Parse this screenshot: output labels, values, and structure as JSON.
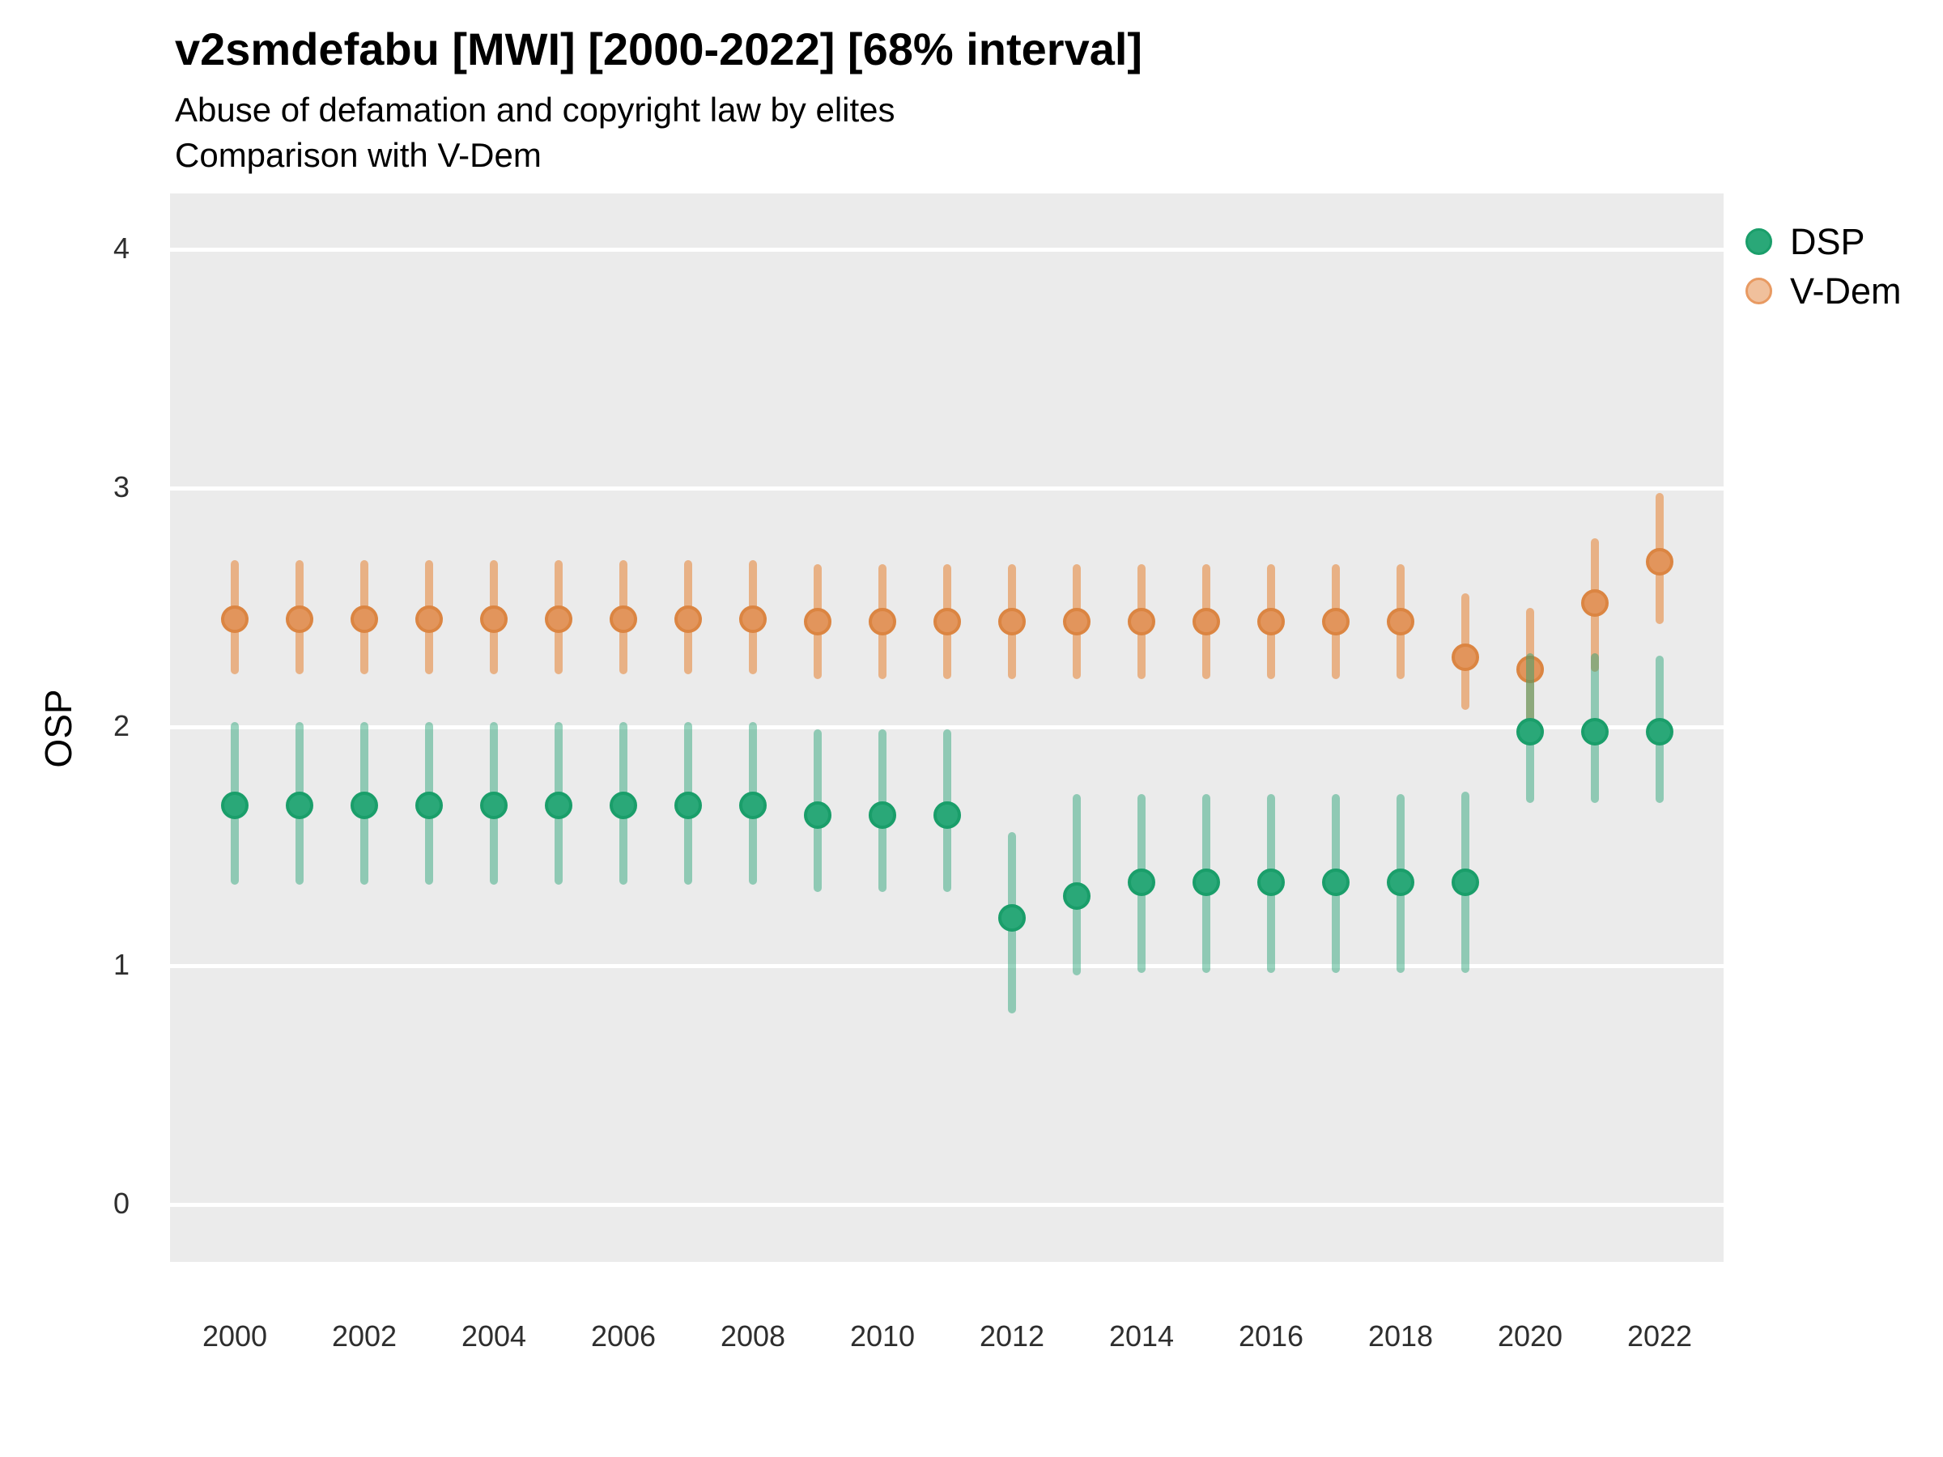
{
  "header": {
    "title": "v2smdefabu [MWI] [2000-2022] [68% interval]",
    "subtitle1": "Abuse of defamation and copyright law by elites",
    "subtitle2": "Comparison with V-Dem"
  },
  "y_axis": {
    "label": "OSP",
    "ticks": [
      0,
      1,
      2,
      3,
      4
    ]
  },
  "x_axis": {
    "tick_years": [
      2000,
      2002,
      2004,
      2006,
      2008,
      2010,
      2012,
      2014,
      2016,
      2018,
      2020,
      2022
    ]
  },
  "legend": {
    "items": [
      {
        "label": "DSP",
        "fill": "#2AA878",
        "stroke": "#1A9E6A"
      },
      {
        "label": "V-Dem",
        "fill": "#F0C09C",
        "stroke": "#E89A62"
      }
    ]
  },
  "colors": {
    "panel_bg": "#EBEBEB",
    "gridline": "#FFFFFF",
    "dsp_green": "#1B9E77",
    "vdem_orange": "#D95F02"
  },
  "chart_data": {
    "type": "pointrange",
    "title": "v2smdefabu [MWI] [2000-2022] [68% interval]",
    "xlabel": "",
    "ylabel": "OSP",
    "ylim": [
      0,
      4
    ],
    "grid": "major-horizontal-white-on-gray",
    "legend_position": "right-top",
    "interval": "68%",
    "x": [
      2000,
      2001,
      2002,
      2003,
      2004,
      2005,
      2006,
      2007,
      2008,
      2009,
      2010,
      2011,
      2012,
      2013,
      2014,
      2015,
      2016,
      2017,
      2018,
      2019,
      2020,
      2021,
      2022
    ],
    "series": [
      {
        "name": "DSP",
        "point_color": "#2AA878",
        "point_border": "#1A9E6A",
        "bar_color": "rgba(30,160,112,0.45)",
        "est": [
          1.67,
          1.67,
          1.67,
          1.67,
          1.67,
          1.67,
          1.67,
          1.67,
          1.67,
          1.63,
          1.63,
          1.63,
          1.2,
          1.29,
          1.35,
          1.35,
          1.35,
          1.35,
          1.35,
          1.35,
          1.98,
          1.98,
          1.98
        ],
        "lo": [
          1.34,
          1.34,
          1.34,
          1.34,
          1.34,
          1.34,
          1.34,
          1.34,
          1.34,
          1.31,
          1.31,
          1.31,
          0.8,
          0.96,
          0.97,
          0.97,
          0.97,
          0.97,
          0.97,
          0.97,
          1.68,
          1.68,
          1.68
        ],
        "hi": [
          2.02,
          2.02,
          2.02,
          2.02,
          2.02,
          2.02,
          2.02,
          2.02,
          2.02,
          1.99,
          1.99,
          1.99,
          1.56,
          1.72,
          1.72,
          1.72,
          1.72,
          1.72,
          1.72,
          1.73,
          2.31,
          2.31,
          2.3
        ]
      },
      {
        "name": "V-Dem",
        "point_color": "#E2955C",
        "point_border": "#DB8542",
        "bar_color": "rgba(229,106,8,0.45)",
        "est": [
          2.45,
          2.45,
          2.45,
          2.45,
          2.45,
          2.45,
          2.45,
          2.45,
          2.45,
          2.44,
          2.44,
          2.44,
          2.44,
          2.44,
          2.44,
          2.44,
          2.44,
          2.44,
          2.44,
          2.29,
          2.24,
          2.52,
          2.69
        ],
        "lo": [
          2.22,
          2.22,
          2.22,
          2.22,
          2.22,
          2.22,
          2.22,
          2.22,
          2.22,
          2.2,
          2.2,
          2.2,
          2.2,
          2.2,
          2.2,
          2.2,
          2.2,
          2.2,
          2.2,
          2.07,
          1.98,
          2.23,
          2.43
        ],
        "hi": [
          2.7,
          2.7,
          2.7,
          2.7,
          2.7,
          2.7,
          2.7,
          2.7,
          2.7,
          2.68,
          2.68,
          2.68,
          2.68,
          2.68,
          2.68,
          2.68,
          2.68,
          2.68,
          2.68,
          2.56,
          2.5,
          2.79,
          2.98
        ]
      }
    ]
  }
}
